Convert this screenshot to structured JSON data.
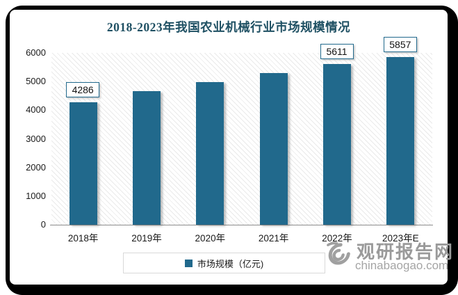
{
  "title": "2018-2023年我国农业机械行业市场规模情况",
  "chart_data": {
    "type": "bar",
    "title": "2018-2023年我国农业机械行业市场规模情况",
    "categories": [
      "2018年",
      "2019年",
      "2020年",
      "2021年",
      "2022年",
      "2023年E"
    ],
    "values": [
      4286,
      4670,
      4970,
      5290,
      5611,
      5857
    ],
    "bar_labels": [
      "4286",
      null,
      null,
      null,
      "5611",
      "5857"
    ],
    "xlabel": "",
    "ylabel": "",
    "ylim": [
      0,
      6000
    ],
    "ytick_labels": [
      "0",
      "1000",
      "2000",
      "3000",
      "4000",
      "5000",
      "6000"
    ],
    "grid": false,
    "plot_background": "diagonal-hatch",
    "legend_position": "bottom"
  },
  "legend": {
    "label": "市场规模（亿元)"
  },
  "watermark": {
    "name": "观研报告网",
    "domain": "chinabaogao.com"
  },
  "colors": {
    "bar": "#21698C",
    "title": "#1F5063",
    "label_box_border": "#21698C",
    "axis_line": "#8C8C8C",
    "legend_border": "#D9D9D9",
    "watermark": "#9E9E9E",
    "frame": "#000000"
  }
}
